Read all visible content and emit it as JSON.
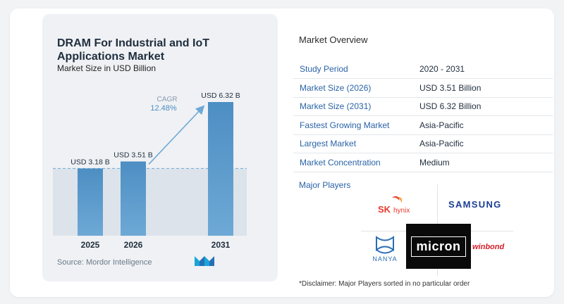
{
  "title": "DRAM For Industrial and IoT Applications Market",
  "subtitle": "Market Size in USD Billion",
  "source": "Source:  Mordor Intelligence",
  "chart_data": {
    "type": "bar",
    "categories": [
      "2025",
      "2026",
      "2031"
    ],
    "values": [
      3.18,
      3.51,
      6.32
    ],
    "value_labels": [
      "USD 3.18 B",
      "USD 3.51 B",
      "USD 6.32 B"
    ],
    "ylim": [
      0,
      6.32
    ],
    "grid": false,
    "annotation": {
      "label": "CAGR",
      "value": "12.48%"
    },
    "colors": {
      "bar_top": "#4d8ec3",
      "bar_bottom": "#6ea9d6",
      "arrow": "#6ea9d6",
      "cagr_label": "#8a9bb0",
      "cagr_value": "#4d8ec3",
      "dashed": "#6ea9d6",
      "band": "#dde3ea"
    }
  },
  "overview": {
    "title": "Market Overview",
    "rows": [
      {
        "label": "Study Period",
        "value": "2020 - 2031"
      },
      {
        "label": "Market Size (2026)",
        "value": "USD 3.51 Billion"
      },
      {
        "label": "Market Size (2031)",
        "value": "USD 6.32 Billion"
      },
      {
        "label": "Fastest Growing Market",
        "value": "Asia-Pacific"
      },
      {
        "label": "Largest Market",
        "value": "Asia-Pacific"
      },
      {
        "label": "Market Concentration",
        "value": "Medium"
      }
    ]
  },
  "players": {
    "title": "Major Players",
    "logos": {
      "sk": {
        "sk": "SK",
        "hynix": "hynix"
      },
      "samsung": "SAMSUNG",
      "nanya": "NANYA",
      "micron": "micron",
      "winbond": "winbond"
    }
  },
  "disclaimer": "*Disclaimer: Major Players sorted in no particular order"
}
